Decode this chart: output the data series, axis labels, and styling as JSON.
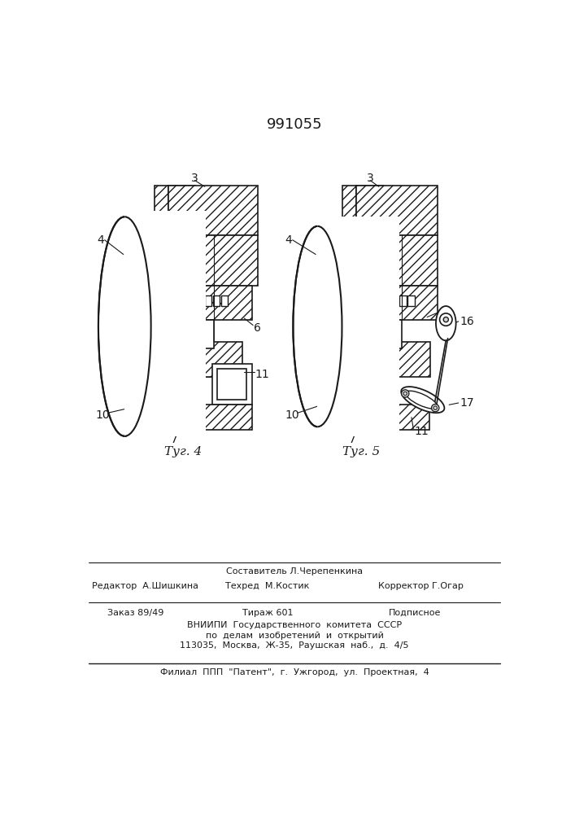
{
  "patent_number": "991055",
  "fig4_label": "Τуг. 4",
  "fig5_label": "Τуг. 5",
  "background_color": "#ffffff",
  "line_color": "#1a1a1a",
  "footer_line1": "Составитель Л.Черепенкина",
  "footer_line2a": "Редактор  А.Шишкина",
  "footer_line2b": "Техред  М.Костик",
  "footer_line2c": "Корректор Г.Огар",
  "footer_line3a": "Заказ 89/49",
  "footer_line3b": "Тираж 601",
  "footer_line3c": "Подписное",
  "footer_line4": "ВНИИПИ  Государственного  комитета  СССР",
  "footer_line5": "по  делам  изобретений  и  открытий",
  "footer_line6": "113035,  Москва,  Ж-35,  Раушская  наб.,  д.  4/5",
  "footer_line7": "Филиал  ППП  \"Патент\",  г.  Ужгород,  ул.  Проектная,  4"
}
